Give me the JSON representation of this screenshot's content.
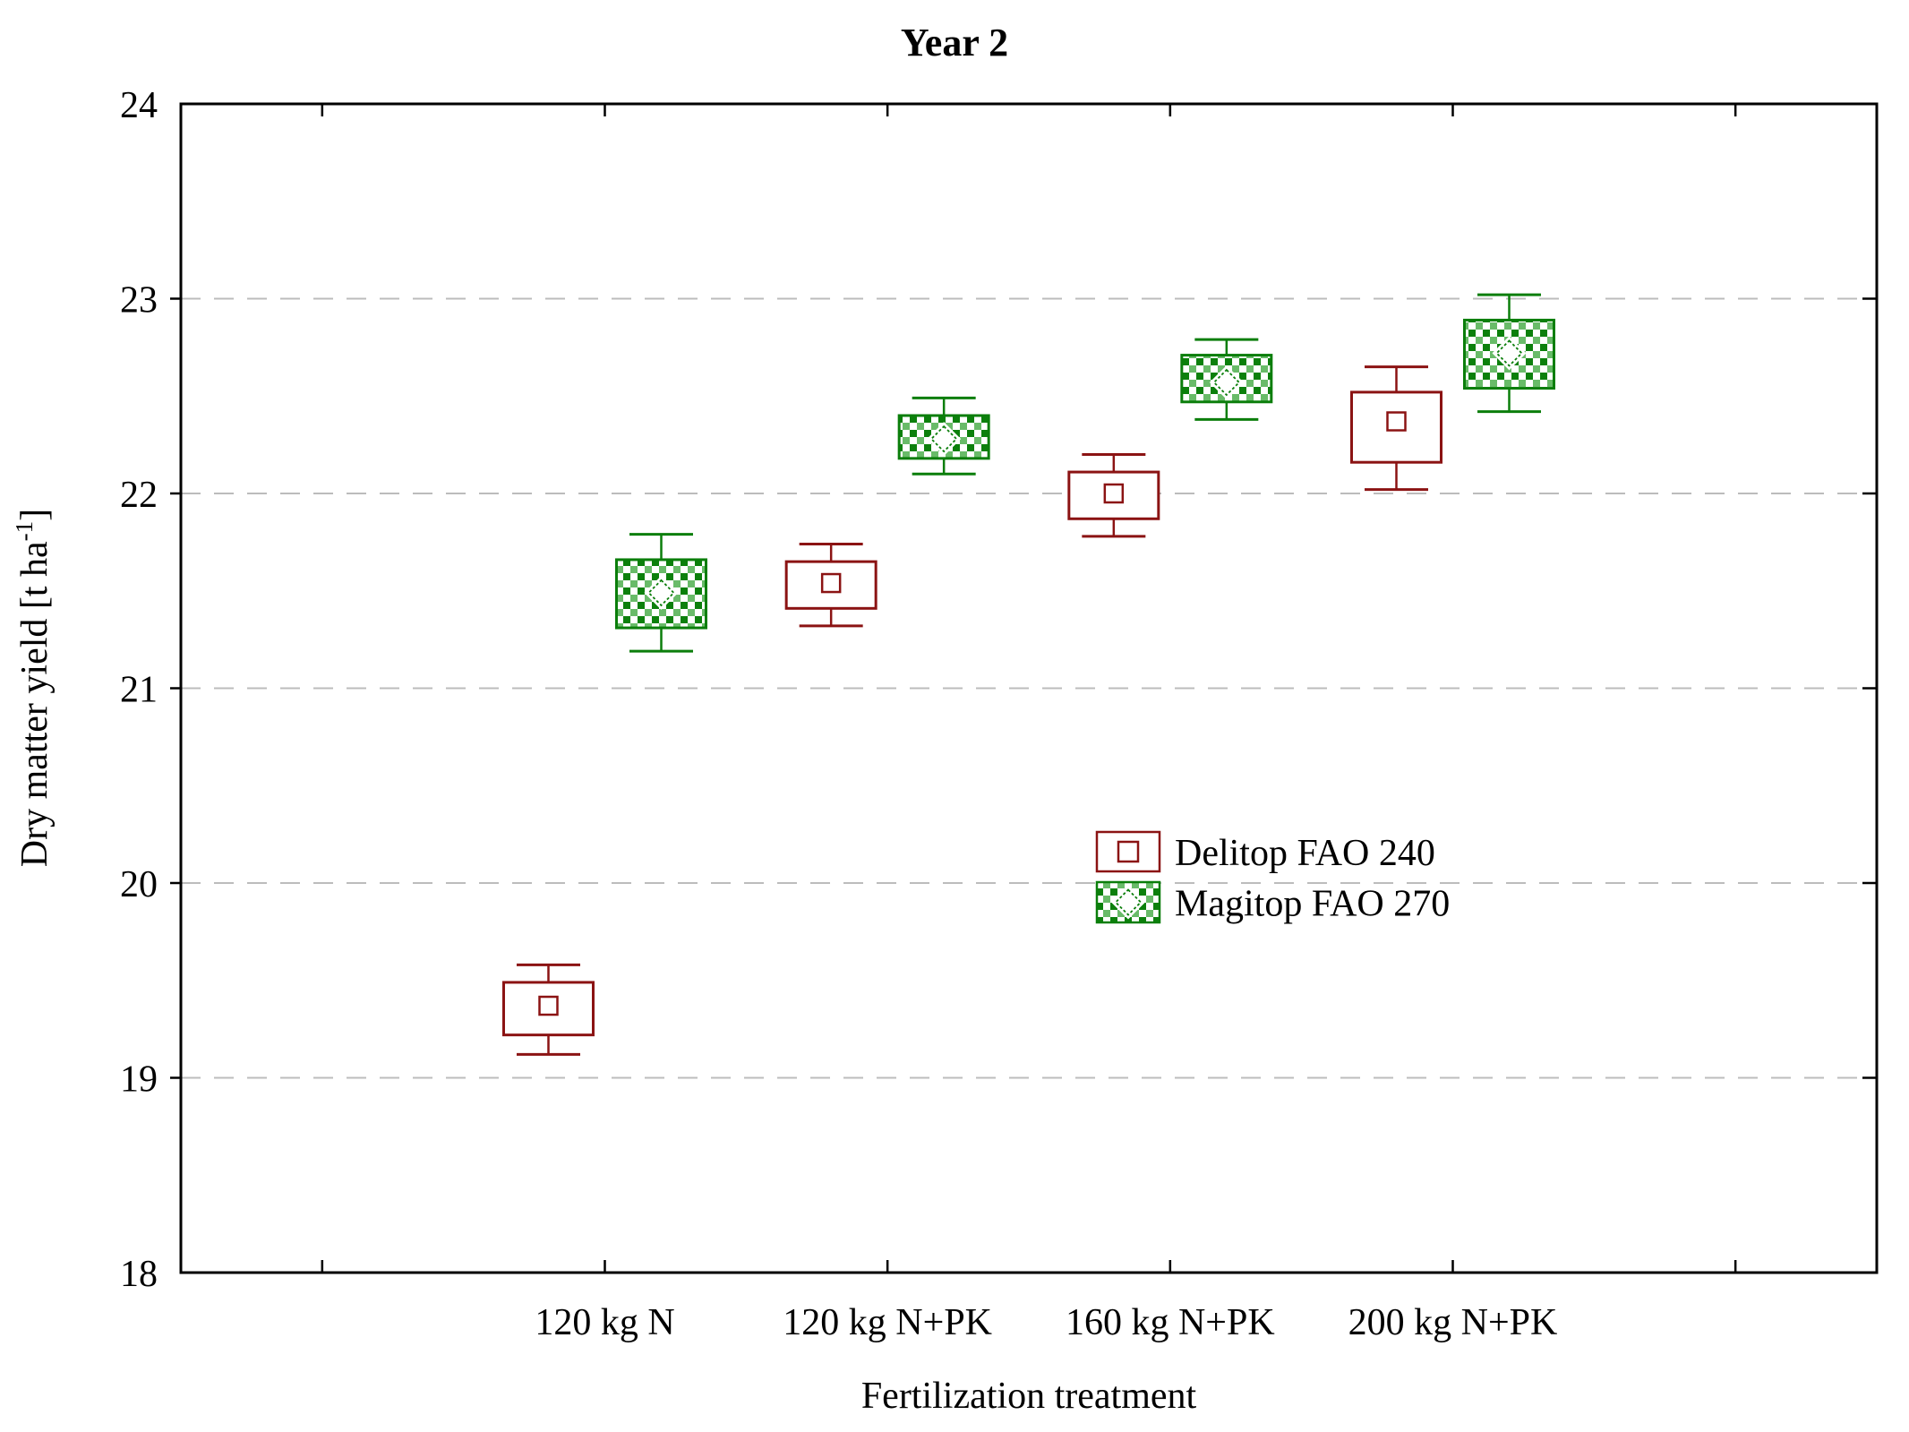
{
  "chart_data": {
    "type": "boxplot",
    "title": "Year 2",
    "xlabel": "Fertilization treatment",
    "ylabel": "Dry matter yield [t ha⁻¹]",
    "ylabel_parts": {
      "prefix": "Dry matter yield [t ha",
      "superscript": "-1",
      "suffix": "]"
    },
    "ylim": [
      18,
      24
    ],
    "yticks": [
      18,
      19,
      20,
      21,
      22,
      23,
      24
    ],
    "gridlines_at": [
      19,
      20,
      21,
      22,
      23
    ],
    "grid": "horizontal-dashed",
    "legend_position": "inside-center-right",
    "categories": [
      "120 kg N",
      "120 kg N+PK",
      "160 kg N+PK",
      "200 kg N+PK"
    ],
    "series": [
      {
        "name": "Delitop FAO 240",
        "marker": "square",
        "fill": "white",
        "color": "#8b1313",
        "boxes": [
          {
            "category": "120 kg N",
            "whisker_low": 19.12,
            "box_low": 19.22,
            "mean": 19.37,
            "box_high": 19.49,
            "whisker_high": 19.58
          },
          {
            "category": "120 kg N+PK",
            "whisker_low": 21.32,
            "box_low": 21.41,
            "mean": 21.54,
            "box_high": 21.65,
            "whisker_high": 21.74
          },
          {
            "category": "160 kg N+PK",
            "whisker_low": 21.78,
            "box_low": 21.87,
            "mean": 22.0,
            "box_high": 22.11,
            "whisker_high": 22.2
          },
          {
            "category": "200 kg N+PK",
            "whisker_low": 22.02,
            "box_low": 22.16,
            "mean": 22.37,
            "box_high": 22.52,
            "whisker_high": 22.65
          }
        ]
      },
      {
        "name": "Magitop FAO 270",
        "marker": "diamond",
        "fill": "diagonal-hatch",
        "color": "#0b7e0b",
        "boxes": [
          {
            "category": "120 kg N",
            "whisker_low": 21.19,
            "box_low": 21.31,
            "mean": 21.49,
            "box_high": 21.66,
            "whisker_high": 21.79
          },
          {
            "category": "120 kg N+PK",
            "whisker_low": 22.1,
            "box_low": 22.18,
            "mean": 22.28,
            "box_high": 22.4,
            "whisker_high": 22.49
          },
          {
            "category": "160 kg N+PK",
            "whisker_low": 22.38,
            "box_low": 22.47,
            "mean": 22.57,
            "box_high": 22.71,
            "whisker_high": 22.79
          },
          {
            "category": "200 kg N+PK",
            "whisker_low": 22.42,
            "box_low": 22.54,
            "mean": 22.72,
            "box_high": 22.89,
            "whisker_high": 23.02
          }
        ]
      }
    ],
    "colors": {
      "delitop": "#8b1313",
      "magitop_dark": "#0b7e0b",
      "magitop_hatch_dark": "#0c800c",
      "magitop_hatch_light": "#69bb69",
      "grid": "#bcbcbc",
      "axis": "#000000",
      "text": "#000000",
      "background": "#ffffff"
    }
  }
}
